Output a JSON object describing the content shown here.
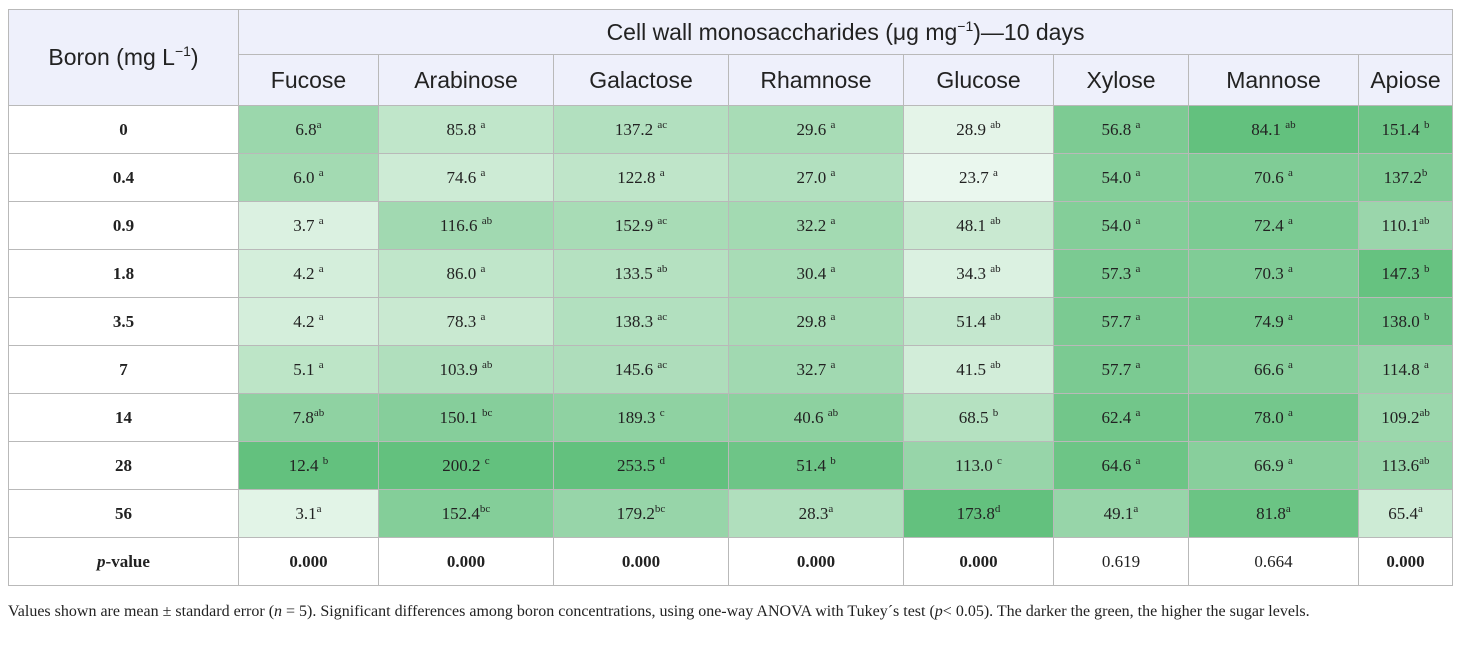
{
  "table": {
    "row_header_main": "Boron (mg L",
    "row_header_sup": "−1",
    "row_header_close": ")",
    "group_header_pre": "Cell wall monosaccharides (μg mg",
    "group_header_sup": "−1",
    "group_header_post": ")—10 days",
    "columns": [
      "Fucose",
      "Arabinose",
      "Galactose",
      "Rhamnose",
      "Glucose",
      "Xylose",
      "Mannose",
      "Apiose"
    ],
    "rows": [
      {
        "label": "0",
        "cells": [
          {
            "v": "6.8",
            "s": "a",
            "c": "#9bd7ac"
          },
          {
            "v": "85.8 ",
            "s": "a",
            "c": "#c0e6ca"
          },
          {
            "v": "137.2 ",
            "s": "ac",
            "c": "#b2e0bf"
          },
          {
            "v": "29.6 ",
            "s": "a",
            "c": "#a8dcb6"
          },
          {
            "v": "28.9 ",
            "s": "ab",
            "c": "#e4f4e8"
          },
          {
            "v": "56.8 ",
            "s": "a",
            "c": "#7dcb93"
          },
          {
            "v": "84.1 ",
            "s": "ab",
            "c": "#63c17e"
          },
          {
            "v": "151.4 ",
            "s": "b",
            "c": "#6dc586"
          }
        ]
      },
      {
        "label": "0.4",
        "cells": [
          {
            "v": "6.0 ",
            "s": "a",
            "c": "#a3dab2"
          },
          {
            "v": "74.6 ",
            "s": "a",
            "c": "#cdebd5"
          },
          {
            "v": "122.8 ",
            "s": "a",
            "c": "#bfe5c9"
          },
          {
            "v": "27.0 ",
            "s": "a",
            "c": "#b2e0bf"
          },
          {
            "v": "23.7 ",
            "s": "a",
            "c": "#eaf7ee"
          },
          {
            "v": "54.0 ",
            "s": "a",
            "c": "#84ce99"
          },
          {
            "v": "70.6 ",
            "s": "a",
            "c": "#80cc96"
          },
          {
            "v": "137.2",
            "s": "b",
            "c": "#7fcc95"
          }
        ]
      },
      {
        "label": "0.9",
        "cells": [
          {
            "v": "3.7 ",
            "s": "a",
            "c": "#dbf1e1"
          },
          {
            "v": "116.6 ",
            "s": "ab",
            "c": "#a1d9b1"
          },
          {
            "v": "152.9 ",
            "s": "ac",
            "c": "#a8dcb6"
          },
          {
            "v": "32.2 ",
            "s": "a",
            "c": "#a3dab2"
          },
          {
            "v": "48.1 ",
            "s": "ab",
            "c": "#c9e9d1"
          },
          {
            "v": "54.0 ",
            "s": "a",
            "c": "#84ce99"
          },
          {
            "v": "72.4 ",
            "s": "a",
            "c": "#7ccb93"
          },
          {
            "v": "110.1",
            "s": "ab",
            "c": "#9ad6ab"
          }
        ]
      },
      {
        "label": "1.8",
        "cells": [
          {
            "v": "4.2 ",
            "s": "a",
            "c": "#d4eedb"
          },
          {
            "v": "86.0 ",
            "s": "a",
            "c": "#c0e6ca"
          },
          {
            "v": "133.5 ",
            "s": "ab",
            "c": "#b5e1c1"
          },
          {
            "v": "30.4 ",
            "s": "a",
            "c": "#a8dcb6"
          },
          {
            "v": "34.3 ",
            "s": "ab",
            "c": "#dbf1e1"
          },
          {
            "v": "57.3 ",
            "s": "a",
            "c": "#7bca92"
          },
          {
            "v": "70.3 ",
            "s": "a",
            "c": "#80cc96"
          },
          {
            "v": "147.3 ",
            "s": "b",
            "c": "#66c280"
          }
        ]
      },
      {
        "label": "3.5",
        "cells": [
          {
            "v": "4.2 ",
            "s": "a",
            "c": "#d4eedb"
          },
          {
            "v": "78.3 ",
            "s": "a",
            "c": "#c9e9d1"
          },
          {
            "v": "138.3 ",
            "s": "ac",
            "c": "#b2e0bf"
          },
          {
            "v": "29.8 ",
            "s": "a",
            "c": "#a8dcb6"
          },
          {
            "v": "51.4 ",
            "s": "ab",
            "c": "#c4e7ce"
          },
          {
            "v": "57.7 ",
            "s": "a",
            "c": "#7bca92"
          },
          {
            "v": "74.9 ",
            "s": "a",
            "c": "#78c98f"
          },
          {
            "v": "138.0 ",
            "s": "b",
            "c": "#75c88d"
          }
        ]
      },
      {
        "label": "7",
        "cells": [
          {
            "v": "5.1 ",
            "s": "a",
            "c": "#bde5c7"
          },
          {
            "v": "103.9 ",
            "s": "ab",
            "c": "#b0dfbd"
          },
          {
            "v": "145.6 ",
            "s": "ac",
            "c": "#aeddbb"
          },
          {
            "v": "32.7 ",
            "s": "a",
            "c": "#a1d9b1"
          },
          {
            "v": "41.5 ",
            "s": "ab",
            "c": "#d2edd9"
          },
          {
            "v": "57.7 ",
            "s": "a",
            "c": "#7bca92"
          },
          {
            "v": "66.6 ",
            "s": "a",
            "c": "#88cf9c"
          },
          {
            "v": "114.8 ",
            "s": "a",
            "c": "#95d4a7"
          }
        ]
      },
      {
        "label": "14",
        "cells": [
          {
            "v": "7.8",
            "s": "ab",
            "c": "#8fd2a2"
          },
          {
            "v": "150.1 ",
            "s": "bc",
            "c": "#86ce9b"
          },
          {
            "v": "189.3 ",
            "s": "c",
            "c": "#8fd2a2"
          },
          {
            "v": "40.6 ",
            "s": "ab",
            "c": "#8dd1a0"
          },
          {
            "v": "68.5 ",
            "s": "b",
            "c": "#b5e1c1"
          },
          {
            "v": "62.4 ",
            "s": "a",
            "c": "#72c68a"
          },
          {
            "v": "78.0 ",
            "s": "a",
            "c": "#74c78c"
          },
          {
            "v": "109.2",
            "s": "ab",
            "c": "#9bd7ac"
          }
        ]
      },
      {
        "label": "28",
        "cells": [
          {
            "v": "12.4 ",
            "s": "b",
            "c": "#63c17e"
          },
          {
            "v": "200.2 ",
            "s": "c",
            "c": "#63c17e"
          },
          {
            "v": "253.5 ",
            "s": "d",
            "c": "#63c17e"
          },
          {
            "v": "51.4 ",
            "s": "b",
            "c": "#6ec587"
          },
          {
            "v": "113.0 ",
            "s": "c",
            "c": "#97d5a9"
          },
          {
            "v": "64.6 ",
            "s": "a",
            "c": "#6dc586"
          },
          {
            "v": "66.9 ",
            "s": "a",
            "c": "#88cf9c"
          },
          {
            "v": "113.6",
            "s": "ab",
            "c": "#97d5a9"
          }
        ]
      },
      {
        "label": "56",
        "cells": [
          {
            "v": "3.1",
            "s": "a",
            "c": "#e2f4e7"
          },
          {
            "v": "152.4",
            "s": "bc",
            "c": "#84ce99"
          },
          {
            "v": "179.2",
            "s": "bc",
            "c": "#97d5a9"
          },
          {
            "v": "28.3",
            "s": "a",
            "c": "#b0dfbd"
          },
          {
            "v": "173.8",
            "s": "d",
            "c": "#63c17e"
          },
          {
            "v": "49.1",
            "s": "a",
            "c": "#97d5a9"
          },
          {
            "v": "81.8",
            "s": "a",
            "c": "#6bc484"
          },
          {
            "v": "65.4",
            "s": "a",
            "c": "#cdebd5"
          }
        ]
      }
    ],
    "pvalue_label_italic": "p",
    "pvalue_label_rest": "-value",
    "pvalues": [
      {
        "v": "0.000",
        "bold": true
      },
      {
        "v": "0.000",
        "bold": true
      },
      {
        "v": "0.000",
        "bold": true
      },
      {
        "v": "0.000",
        "bold": true
      },
      {
        "v": "0.000",
        "bold": true
      },
      {
        "v": "0.619",
        "bold": false
      },
      {
        "v": "0.664",
        "bold": false
      },
      {
        "v": "0.000",
        "bold": true
      }
    ]
  },
  "footnote": {
    "part1": "Values shown are mean ± standard error (",
    "n_italic": "n",
    "part2": " = 5). Significant differences among boron concentrations, using one-way ANOVA with Tukey´s test (",
    "p_italic": "p",
    "part3": "< 0.05). The darker the green, the higher the sugar levels."
  }
}
